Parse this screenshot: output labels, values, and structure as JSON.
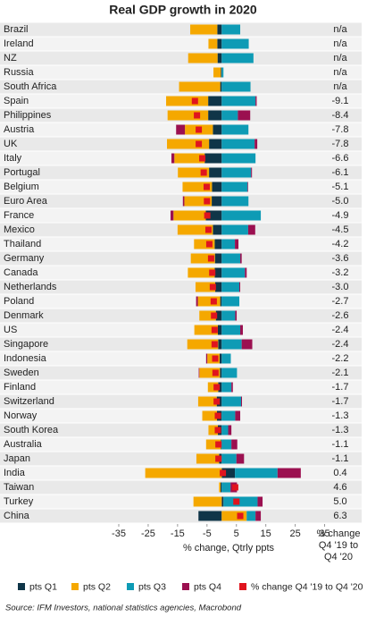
{
  "chart_data": {
    "type": "bar",
    "orientation": "horizontal",
    "stacked": true,
    "title": "Real GDP growth in 2020",
    "x_label": "% change, Qtrly ppts",
    "value_column_label": "% change Q4 '19 to Q4 '20",
    "source": "Source: IFM Investors, national statistics agencies, Macrobond",
    "categories": [
      "Brazil",
      "Ireland",
      "NZ",
      "Russia",
      "South Africa",
      "Spain",
      "Philippines",
      "Austria",
      "UK",
      "Italy",
      "Portugal",
      "Belgium",
      "Euro Area",
      "France",
      "Mexico",
      "Thailand",
      "Germany",
      "Canada",
      "Netherlands",
      "Poland",
      "Denmark",
      "US",
      "Singapore",
      "Indonesia",
      "Sweden",
      "Finland",
      "Switzerland",
      "Norway",
      "South Korea",
      "Australia",
      "Japan",
      "India",
      "Taiwan",
      "Turkey",
      "China"
    ],
    "xlim": [
      -35,
      40
    ],
    "xticks": [
      -35,
      -25,
      -15,
      -5,
      5,
      15,
      25,
      35
    ],
    "series": [
      {
        "name": "pts Q1",
        "color": "#0f3548",
        "values": [
          -1.5,
          -1.5,
          -1.4,
          -0.3,
          -0.5,
          -4.6,
          -4.6,
          -3.0,
          -4.3,
          -5.8,
          -4.3,
          -3.3,
          -3.4,
          -5.4,
          -3.0,
          -2.4,
          -2.3,
          -2.4,
          -2.2,
          -0.5,
          -2.0,
          -1.3,
          -1.2,
          -0.7,
          -0.6,
          -1.2,
          -1.7,
          -1.6,
          -1.3,
          -0.3,
          -0.9,
          4.5,
          -0.4,
          0.6,
          -7.9
        ]
      },
      {
        "name": "pts Q2",
        "color": "#f5a800",
        "values": [
          -9.2,
          -3.0,
          -10.0,
          -2.5,
          -14.0,
          -14.3,
          -13.8,
          -9.5,
          -14.3,
          -10.3,
          -10.6,
          -10.0,
          -9.3,
          -11.0,
          -12.0,
          -7.0,
          -8.2,
          -9.1,
          -6.7,
          -7.6,
          -5.6,
          -8.0,
          -10.5,
          -4.2,
          -7.0,
          -3.5,
          -6.3,
          -5.0,
          -3.2,
          -5.0,
          -7.7,
          -26.0,
          -0.5,
          -9.6,
          8.5
        ]
      },
      {
        "name": "pts Q3",
        "color": "#0e9bb5",
        "values": [
          6.3,
          9.2,
          10.8,
          0.6,
          9.8,
          11.5,
          5.5,
          9.1,
          11.2,
          11.5,
          10.0,
          8.8,
          9.1,
          13.3,
          9.0,
          4.5,
          6.3,
          7.9,
          6.0,
          6.0,
          4.6,
          6.3,
          6.8,
          3.1,
          5.2,
          3.3,
          6.6,
          4.6,
          2.2,
          3.3,
          5.0,
          14.5,
          3.0,
          11.6,
          3.0
        ]
      },
      {
        "name": "pts Q4",
        "color": "#9b1050",
        "values": [
          null,
          null,
          null,
          null,
          null,
          0.4,
          4.2,
          -3.0,
          0.9,
          -1.0,
          0.3,
          0.2,
          -0.5,
          -1.0,
          2.4,
          1.2,
          0.5,
          0.6,
          0.3,
          -0.6,
          0.5,
          0.9,
          3.6,
          -0.4,
          -0.2,
          0.5,
          0.3,
          1.7,
          1.1,
          2.0,
          2.6,
          7.9,
          2.2,
          1.7,
          1.8
        ]
      },
      {
        "name": "% change Q4 '19 to Q4 '20",
        "color": "#e0141e",
        "kind": "marker",
        "values": [
          null,
          null,
          null,
          null,
          null,
          -9.1,
          -8.4,
          -7.8,
          -7.8,
          -6.6,
          -6.1,
          -5.1,
          -5.0,
          -4.9,
          -4.5,
          -4.2,
          -3.6,
          -3.2,
          -3.0,
          -2.7,
          -2.6,
          -2.4,
          -2.4,
          -2.2,
          -2.1,
          -1.7,
          -1.7,
          -1.3,
          -1.3,
          -1.1,
          -1.1,
          0.4,
          4.6,
          5.0,
          6.3
        ],
        "value_labels": [
          "n/a",
          "n/a",
          "n/a",
          "n/a",
          "n/a",
          "-9.1",
          "-8.4",
          "-7.8",
          "-7.8",
          "-6.6",
          "-6.1",
          "-5.1",
          "-5.0",
          "-4.9",
          "-4.5",
          "-4.2",
          "-3.6",
          "-3.2",
          "-3.0",
          "-2.7",
          "-2.6",
          "-2.4",
          "-2.4",
          "-2.2",
          "-2.1",
          "-1.7",
          "-1.7",
          "-1.3",
          "-1.3",
          "-1.1",
          "-1.1",
          "0.4",
          "4.6",
          "5.0",
          "6.3"
        ]
      }
    ]
  }
}
